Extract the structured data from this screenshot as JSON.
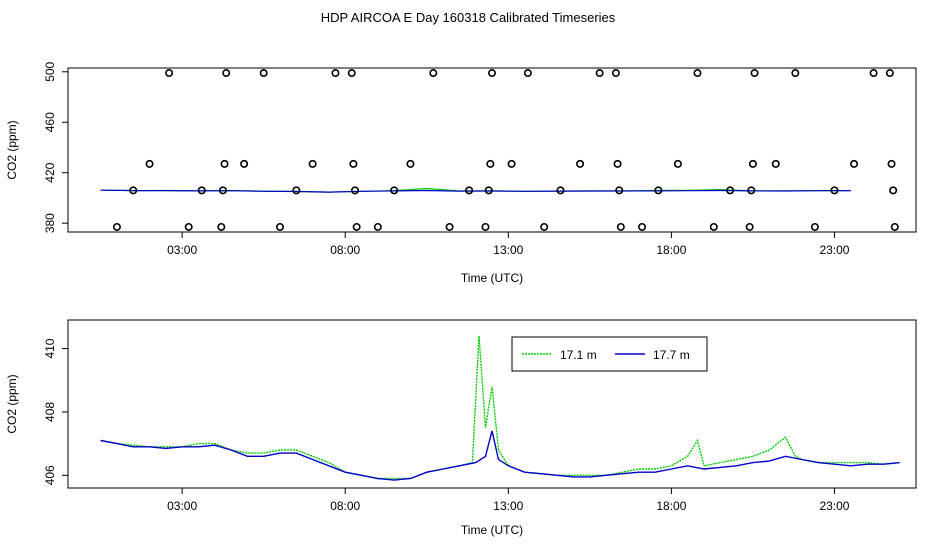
{
  "title": "HDP AIRCOA E  Day 160318  Calibrated Timeseries",
  "chart_data": [
    {
      "type": "line",
      "panel": "top",
      "xlabel": "Time (UTC)",
      "ylabel": "CO2 (ppm)",
      "x_tick_labels": [
        "03:00",
        "08:00",
        "13:00",
        "18:00",
        "23:00"
      ],
      "x_tick_hours": [
        3,
        8,
        13,
        18,
        23
      ],
      "xlim_hours": [
        -0.5,
        25.5
      ],
      "y_ticks": [
        380,
        420,
        460,
        500
      ],
      "ylim": [
        373,
        503
      ],
      "series": [
        {
          "color": "#00cc00",
          "values_hours": [
            0.5,
            1.5,
            2.5,
            3.5,
            4.5,
            5.5,
            6.5,
            7.5,
            8.5,
            9.5,
            10.5,
            11.5,
            12.5,
            13.5,
            14.5,
            15.5,
            16.5,
            17.5,
            18.5,
            19.5,
            20.5,
            21.5,
            22.5,
            23.5
          ],
          "values": [
            406.1,
            405.8,
            405.9,
            405.6,
            405.8,
            405.4,
            405.2,
            404.6,
            405.3,
            405.7,
            407.5,
            405.5,
            405.6,
            405.3,
            405.4,
            405.5,
            405.6,
            405.9,
            406.0,
            406.6,
            405.6,
            405.6,
            405.7,
            405.8
          ]
        },
        {
          "color": "#0000cc",
          "values_hours": [
            0.5,
            1.5,
            2.5,
            3.5,
            4.5,
            5.5,
            6.5,
            7.5,
            8.5,
            9.5,
            10.5,
            11.5,
            12.5,
            13.5,
            14.5,
            15.5,
            16.5,
            17.5,
            18.5,
            19.5,
            20.5,
            21.5,
            22.5,
            23.5
          ],
          "values": [
            406.1,
            405.8,
            405.8,
            405.6,
            405.7,
            405.3,
            405.1,
            404.6,
            405.3,
            405.6,
            405.9,
            405.4,
            405.5,
            405.3,
            405.4,
            405.5,
            405.5,
            405.6,
            405.7,
            405.9,
            405.6,
            405.5,
            405.7,
            405.8
          ]
        }
      ],
      "markers": [
        {
          "x": 1.0,
          "y": 377
        },
        {
          "x": 1.5,
          "y": 406
        },
        {
          "x": 2.0,
          "y": 427
        },
        {
          "x": 2.6,
          "y": 499
        },
        {
          "x": 3.2,
          "y": 377
        },
        {
          "x": 3.6,
          "y": 406
        },
        {
          "x": 4.2,
          "y": 377
        },
        {
          "x": 4.25,
          "y": 406
        },
        {
          "x": 4.3,
          "y": 427
        },
        {
          "x": 4.35,
          "y": 499
        },
        {
          "x": 4.9,
          "y": 427
        },
        {
          "x": 5.5,
          "y": 499
        },
        {
          "x": 6.0,
          "y": 377
        },
        {
          "x": 6.5,
          "y": 406
        },
        {
          "x": 7.0,
          "y": 427
        },
        {
          "x": 7.7,
          "y": 499
        },
        {
          "x": 8.2,
          "y": 499
        },
        {
          "x": 8.25,
          "y": 427
        },
        {
          "x": 8.3,
          "y": 406
        },
        {
          "x": 8.35,
          "y": 377
        },
        {
          "x": 9.0,
          "y": 377
        },
        {
          "x": 9.5,
          "y": 406
        },
        {
          "x": 10.0,
          "y": 427
        },
        {
          "x": 10.7,
          "y": 499
        },
        {
          "x": 11.2,
          "y": 377
        },
        {
          "x": 11.8,
          "y": 406
        },
        {
          "x": 12.3,
          "y": 377
        },
        {
          "x": 12.4,
          "y": 406
        },
        {
          "x": 12.45,
          "y": 427
        },
        {
          "x": 12.5,
          "y": 499
        },
        {
          "x": 13.1,
          "y": 427
        },
        {
          "x": 13.6,
          "y": 499
        },
        {
          "x": 14.1,
          "y": 377
        },
        {
          "x": 14.6,
          "y": 406
        },
        {
          "x": 15.2,
          "y": 427
        },
        {
          "x": 15.8,
          "y": 499
        },
        {
          "x": 16.3,
          "y": 499
        },
        {
          "x": 16.35,
          "y": 427
        },
        {
          "x": 16.4,
          "y": 406
        },
        {
          "x": 16.45,
          "y": 377
        },
        {
          "x": 17.1,
          "y": 377
        },
        {
          "x": 17.6,
          "y": 406
        },
        {
          "x": 18.2,
          "y": 427
        },
        {
          "x": 18.8,
          "y": 499
        },
        {
          "x": 19.3,
          "y": 377
        },
        {
          "x": 19.8,
          "y": 406
        },
        {
          "x": 20.4,
          "y": 377
        },
        {
          "x": 20.45,
          "y": 406
        },
        {
          "x": 20.5,
          "y": 427
        },
        {
          "x": 20.55,
          "y": 499
        },
        {
          "x": 21.2,
          "y": 427
        },
        {
          "x": 21.8,
          "y": 499
        },
        {
          "x": 22.4,
          "y": 377
        },
        {
          "x": 23.0,
          "y": 406
        },
        {
          "x": 23.6,
          "y": 427
        },
        {
          "x": 24.2,
          "y": 499
        },
        {
          "x": 24.7,
          "y": 499
        },
        {
          "x": 24.75,
          "y": 427
        },
        {
          "x": 24.8,
          "y": 406
        },
        {
          "x": 24.85,
          "y": 377
        }
      ]
    },
    {
      "type": "line",
      "panel": "bottom",
      "xlabel": "Time (UTC)",
      "ylabel": "CO2 (ppm)",
      "x_tick_labels": [
        "03:00",
        "08:00",
        "13:00",
        "18:00",
        "23:00"
      ],
      "x_tick_hours": [
        3,
        8,
        13,
        18,
        23
      ],
      "xlim_hours": [
        -0.5,
        25.5
      ],
      "y_ticks": [
        406,
        408,
        410
      ],
      "ylim": [
        405.6,
        410.9
      ],
      "legend": {
        "placement": "top-center"
      },
      "series": [
        {
          "name": "17.1 m",
          "color": "#00cc00",
          "dash": "2,1",
          "points": [
            [
              0.5,
              407.1
            ],
            [
              1.0,
              407.0
            ],
            [
              1.5,
              406.95
            ],
            [
              2.0,
              406.9
            ],
            [
              2.5,
              406.9
            ],
            [
              3.0,
              406.9
            ],
            [
              3.5,
              407.0
            ],
            [
              4.0,
              407.0
            ],
            [
              4.5,
              406.8
            ],
            [
              5.0,
              406.7
            ],
            [
              5.5,
              406.7
            ],
            [
              6.0,
              406.8
            ],
            [
              6.5,
              406.8
            ],
            [
              7.0,
              406.6
            ],
            [
              7.5,
              406.4
            ],
            [
              8.0,
              406.1
            ],
            [
              8.5,
              406.0
            ],
            [
              9.0,
              405.9
            ],
            [
              9.5,
              405.9
            ],
            [
              10.0,
              405.9
            ],
            [
              10.5,
              406.1
            ],
            [
              11.0,
              406.2
            ],
            [
              11.5,
              406.3
            ],
            [
              11.9,
              406.4
            ],
            [
              12.1,
              410.4
            ],
            [
              12.3,
              407.5
            ],
            [
              12.5,
              408.8
            ],
            [
              12.7,
              406.8
            ],
            [
              13.0,
              406.3
            ],
            [
              13.5,
              406.1
            ],
            [
              14.0,
              406.05
            ],
            [
              14.5,
              406.0
            ],
            [
              15.0,
              406.0
            ],
            [
              15.5,
              406.0
            ],
            [
              16.0,
              406.0
            ],
            [
              16.5,
              406.1
            ],
            [
              17.0,
              406.2
            ],
            [
              17.5,
              406.2
            ],
            [
              18.0,
              406.3
            ],
            [
              18.5,
              406.6
            ],
            [
              18.8,
              407.1
            ],
            [
              19.0,
              406.3
            ],
            [
              19.5,
              406.4
            ],
            [
              20.0,
              406.5
            ],
            [
              20.5,
              406.6
            ],
            [
              21.0,
              406.8
            ],
            [
              21.5,
              407.2
            ],
            [
              21.8,
              406.6
            ],
            [
              22.0,
              406.5
            ],
            [
              22.5,
              406.4
            ],
            [
              23.0,
              406.4
            ],
            [
              23.5,
              406.4
            ],
            [
              24.0,
              406.4
            ],
            [
              24.5,
              406.35
            ],
            [
              25.0,
              406.4
            ]
          ]
        },
        {
          "name": "17.7 m",
          "color": "#0000cc",
          "dash": "",
          "points": [
            [
              0.5,
              407.1
            ],
            [
              1.0,
              407.0
            ],
            [
              1.5,
              406.9
            ],
            [
              2.0,
              406.9
            ],
            [
              2.5,
              406.85
            ],
            [
              3.0,
              406.9
            ],
            [
              3.5,
              406.9
            ],
            [
              4.0,
              406.95
            ],
            [
              4.5,
              406.8
            ],
            [
              5.0,
              406.6
            ],
            [
              5.5,
              406.6
            ],
            [
              6.0,
              406.7
            ],
            [
              6.5,
              406.7
            ],
            [
              7.0,
              406.5
            ],
            [
              7.5,
              406.3
            ],
            [
              8.0,
              406.1
            ],
            [
              8.5,
              406.0
            ],
            [
              9.0,
              405.9
            ],
            [
              9.5,
              405.85
            ],
            [
              10.0,
              405.9
            ],
            [
              10.5,
              406.1
            ],
            [
              11.0,
              406.2
            ],
            [
              11.5,
              406.3
            ],
            [
              12.0,
              406.4
            ],
            [
              12.3,
              406.6
            ],
            [
              12.5,
              407.4
            ],
            [
              12.7,
              406.5
            ],
            [
              13.0,
              406.3
            ],
            [
              13.5,
              406.1
            ],
            [
              14.0,
              406.05
            ],
            [
              14.5,
              406.0
            ],
            [
              15.0,
              405.95
            ],
            [
              15.5,
              405.95
            ],
            [
              16.0,
              406.0
            ],
            [
              16.5,
              406.05
            ],
            [
              17.0,
              406.1
            ],
            [
              17.5,
              406.1
            ],
            [
              18.0,
              406.2
            ],
            [
              18.5,
              406.3
            ],
            [
              19.0,
              406.2
            ],
            [
              19.5,
              406.25
            ],
            [
              20.0,
              406.3
            ],
            [
              20.5,
              406.4
            ],
            [
              21.0,
              406.45
            ],
            [
              21.5,
              406.6
            ],
            [
              22.0,
              406.5
            ],
            [
              22.5,
              406.4
            ],
            [
              23.0,
              406.35
            ],
            [
              23.5,
              406.3
            ],
            [
              24.0,
              406.35
            ],
            [
              24.5,
              406.35
            ],
            [
              25.0,
              406.4
            ]
          ]
        }
      ]
    }
  ]
}
